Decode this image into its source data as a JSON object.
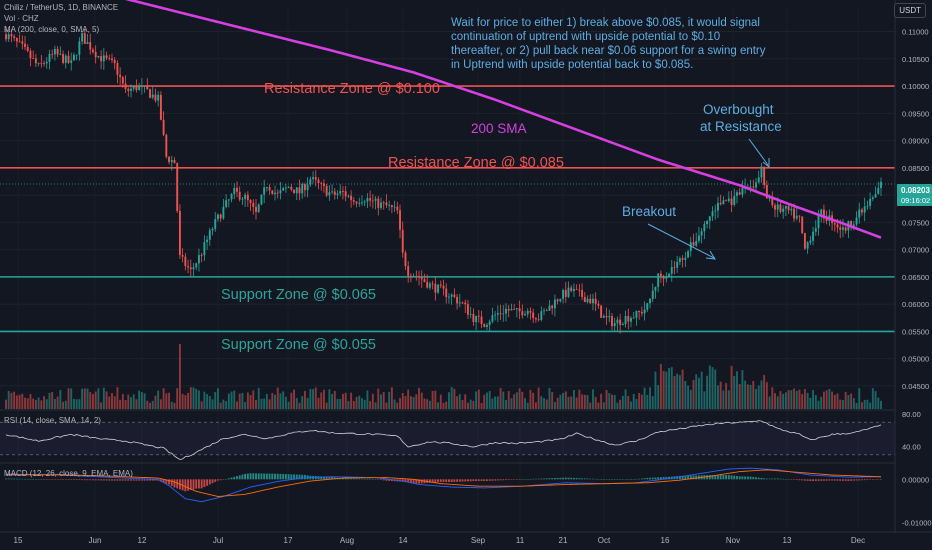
{
  "header": {
    "symbol_line": "Chiliz / TetherUS, 1D, BINANCE",
    "vol_line": "Vol · CHZ",
    "ma_line": "MA (200, close, 0, SMA, 5)",
    "rsi_line": "RSI (14, close, SMA, 14, 2)",
    "macd_line": "MACD (12, 26, close, 9, EMA, EMA)",
    "unit": "USDT"
  },
  "colors": {
    "background": "#131722",
    "up": "#26a69a",
    "down": "#ef5350",
    "sma": "#d63fe0",
    "resistance": "#ef5350",
    "support": "#26a69a",
    "note": "#5dade2",
    "price_label": "#26a69a"
  },
  "annotations": {
    "note": "Wait for price to either 1) break above $0.085, it would signal\ncontinuation of uptrend with upside potential to $0.10\nthereafter, or 2) pull back near $0.06 support for a swing entry\nin Uptrend with upside potential back to $0.085.",
    "resistance_100": "Resistance Zone @ $0.100",
    "resistance_085": "Resistance Zone @ $0.085",
    "support_065": "Support Zone @ $0.065",
    "support_055": "Support Zone @ $0.055",
    "sma_label": "200 SMA",
    "breakout": "Breakout",
    "overbought_1": "Overbought",
    "overbought_2": "at Resistance"
  },
  "price_label": {
    "value": "0.08203",
    "countdown": "09:16:02"
  },
  "chart_data": {
    "type": "candlestick",
    "price_axis": {
      "ticks": [
        "0.11000",
        "0.10500",
        "0.10000",
        "0.09500",
        "0.09000",
        "0.08500",
        "0.08000",
        "0.07500",
        "0.07000",
        "0.06500",
        "0.06000",
        "0.05500",
        "0.05000",
        "0.04500"
      ],
      "ylim": [
        0.0415,
        0.1145
      ]
    },
    "x_axis_ticks": [
      "15",
      "Jun",
      "12",
      "Jul",
      "17",
      "Aug",
      "14",
      "Sep",
      "11",
      "21",
      "Oct",
      "16",
      "Nov",
      "13",
      "Dec"
    ],
    "levels": {
      "resistance": [
        0.1,
        0.085
      ],
      "support": [
        0.065,
        0.055
      ],
      "current_price": 0.08203
    },
    "price_anchors": [
      [
        0,
        0.1095
      ],
      [
        6,
        0.107
      ],
      [
        12,
        0.1035
      ],
      [
        18,
        0.106
      ],
      [
        24,
        0.104
      ],
      [
        28,
        0.109
      ],
      [
        34,
        0.1055
      ],
      [
        40,
        0.1038
      ],
      [
        44,
        0.099
      ],
      [
        48,
        0.0998
      ],
      [
        52,
        0.099
      ],
      [
        56,
        0.0975
      ],
      [
        59,
        0.087
      ],
      [
        62,
        0.086
      ],
      [
        64,
        0.0685
      ],
      [
        68,
        0.066
      ],
      [
        72,
        0.0695
      ],
      [
        76,
        0.074
      ],
      [
        80,
        0.0775
      ],
      [
        84,
        0.0805
      ],
      [
        88,
        0.0795
      ],
      [
        92,
        0.0765
      ],
      [
        96,
        0.082
      ],
      [
        100,
        0.08
      ],
      [
        104,
        0.0815
      ],
      [
        108,
        0.0805
      ],
      [
        112,
        0.083
      ],
      [
        116,
        0.0815
      ],
      [
        120,
        0.08
      ],
      [
        124,
        0.0805
      ],
      [
        128,
        0.079
      ],
      [
        132,
        0.0795
      ],
      [
        136,
        0.0785
      ],
      [
        140,
        0.078
      ],
      [
        144,
        0.077
      ],
      [
        146,
        0.069
      ],
      [
        148,
        0.066
      ],
      [
        152,
        0.065
      ],
      [
        156,
        0.0635
      ],
      [
        160,
        0.0625
      ],
      [
        164,
        0.0615
      ],
      [
        168,
        0.06
      ],
      [
        172,
        0.0575
      ],
      [
        176,
        0.0565
      ],
      [
        180,
        0.058
      ],
      [
        184,
        0.059
      ],
      [
        188,
        0.0585
      ],
      [
        192,
        0.059
      ],
      [
        196,
        0.0575
      ],
      [
        200,
        0.0595
      ],
      [
        204,
        0.0615
      ],
      [
        208,
        0.0625
      ],
      [
        212,
        0.0615
      ],
      [
        216,
        0.0605
      ],
      [
        220,
        0.0575
      ],
      [
        224,
        0.0565
      ],
      [
        228,
        0.0575
      ],
      [
        232,
        0.058
      ],
      [
        236,
        0.0595
      ],
      [
        240,
        0.065
      ],
      [
        244,
        0.066
      ],
      [
        248,
        0.068
      ],
      [
        252,
        0.0705
      ],
      [
        256,
        0.0735
      ],
      [
        260,
        0.077
      ],
      [
        264,
        0.079
      ],
      [
        268,
        0.079
      ],
      [
        272,
        0.0815
      ],
      [
        276,
        0.082
      ],
      [
        278,
        0.0845
      ],
      [
        280,
        0.079
      ],
      [
        284,
        0.0775
      ],
      [
        288,
        0.077
      ],
      [
        292,
        0.0755
      ],
      [
        294,
        0.07
      ],
      [
        296,
        0.0725
      ],
      [
        300,
        0.0765
      ],
      [
        304,
        0.0755
      ],
      [
        308,
        0.0735
      ],
      [
        312,
        0.0755
      ],
      [
        316,
        0.0775
      ],
      [
        320,
        0.08
      ],
      [
        322,
        0.082
      ]
    ],
    "sma_200": [
      [
        0,
        0.12
      ],
      [
        40,
        0.1165
      ],
      [
        80,
        0.1115
      ],
      [
        120,
        0.1065
      ],
      [
        150,
        0.1025
      ],
      [
        180,
        0.0975
      ],
      [
        210,
        0.092
      ],
      [
        240,
        0.0865
      ],
      [
        270,
        0.0818
      ],
      [
        290,
        0.078
      ],
      [
        308,
        0.0748
      ],
      [
        322,
        0.0722
      ]
    ],
    "rsi": {
      "ticks": [
        "80.00",
        "40.00"
      ],
      "range": [
        20,
        85
      ],
      "bands": [
        70,
        30
      ],
      "anchors": [
        [
          0,
          55
        ],
        [
          12,
          47
        ],
        [
          24,
          55
        ],
        [
          36,
          49
        ],
        [
          44,
          47
        ],
        [
          58,
          38
        ],
        [
          64,
          24
        ],
        [
          68,
          30
        ],
        [
          74,
          40
        ],
        [
          80,
          50
        ],
        [
          88,
          55
        ],
        [
          96,
          50
        ],
        [
          104,
          56
        ],
        [
          112,
          60
        ],
        [
          120,
          57
        ],
        [
          128,
          56
        ],
        [
          136,
          55
        ],
        [
          144,
          53
        ],
        [
          148,
          40
        ],
        [
          156,
          46
        ],
        [
          164,
          44
        ],
        [
          172,
          40
        ],
        [
          180,
          45
        ],
        [
          188,
          44
        ],
        [
          196,
          46
        ],
        [
          204,
          49
        ],
        [
          210,
          56
        ],
        [
          216,
          50
        ],
        [
          224,
          42
        ],
        [
          232,
          47
        ],
        [
          240,
          58
        ],
        [
          248,
          62
        ],
        [
          256,
          66
        ],
        [
          264,
          69
        ],
        [
          272,
          70
        ],
        [
          278,
          72
        ],
        [
          284,
          62
        ],
        [
          292,
          55
        ],
        [
          296,
          48
        ],
        [
          304,
          55
        ],
        [
          312,
          57
        ],
        [
          322,
          66
        ]
      ]
    },
    "macd": {
      "ticks": [
        "0.00000",
        "-0.01000"
      ],
      "range": [
        -0.0118,
        0.0038
      ],
      "macd": [
        [
          0,
          0.0012
        ],
        [
          20,
          0.001
        ],
        [
          40,
          0.0004
        ],
        [
          56,
          0.0
        ],
        [
          60,
          -0.0015
        ],
        [
          66,
          -0.0045
        ],
        [
          72,
          -0.0052
        ],
        [
          80,
          -0.004
        ],
        [
          90,
          -0.0018
        ],
        [
          100,
          -0.0005
        ],
        [
          110,
          0.0004
        ],
        [
          120,
          0.0006
        ],
        [
          136,
          0.0004
        ],
        [
          146,
          -0.0004
        ],
        [
          152,
          -0.0012
        ],
        [
          164,
          -0.0018
        ],
        [
          176,
          -0.002
        ],
        [
          190,
          -0.0016
        ],
        [
          206,
          -0.0008
        ],
        [
          220,
          -0.001
        ],
        [
          232,
          -0.0008
        ],
        [
          244,
          0.0002
        ],
        [
          256,
          0.0014
        ],
        [
          266,
          0.0024
        ],
        [
          274,
          0.0026
        ],
        [
          284,
          0.0022
        ],
        [
          296,
          0.001
        ],
        [
          310,
          0.0005
        ],
        [
          322,
          0.0006
        ]
      ],
      "signal": [
        [
          0,
          0.001
        ],
        [
          20,
          0.0011
        ],
        [
          40,
          0.0007
        ],
        [
          56,
          0.0003
        ],
        [
          62,
          -0.0006
        ],
        [
          70,
          -0.0028
        ],
        [
          78,
          -0.004
        ],
        [
          88,
          -0.0035
        ],
        [
          100,
          -0.0018
        ],
        [
          112,
          -0.0004
        ],
        [
          124,
          0.0003
        ],
        [
          140,
          0.0004
        ],
        [
          150,
          0.0
        ],
        [
          160,
          -0.001
        ],
        [
          174,
          -0.0016
        ],
        [
          190,
          -0.0016
        ],
        [
          206,
          -0.0012
        ],
        [
          222,
          -0.001
        ],
        [
          236,
          -0.0008
        ],
        [
          248,
          -0.0002
        ],
        [
          260,
          0.0008
        ],
        [
          270,
          0.0018
        ],
        [
          280,
          0.0022
        ],
        [
          292,
          0.0016
        ],
        [
          304,
          0.001
        ],
        [
          322,
          0.0006
        ]
      ]
    }
  }
}
